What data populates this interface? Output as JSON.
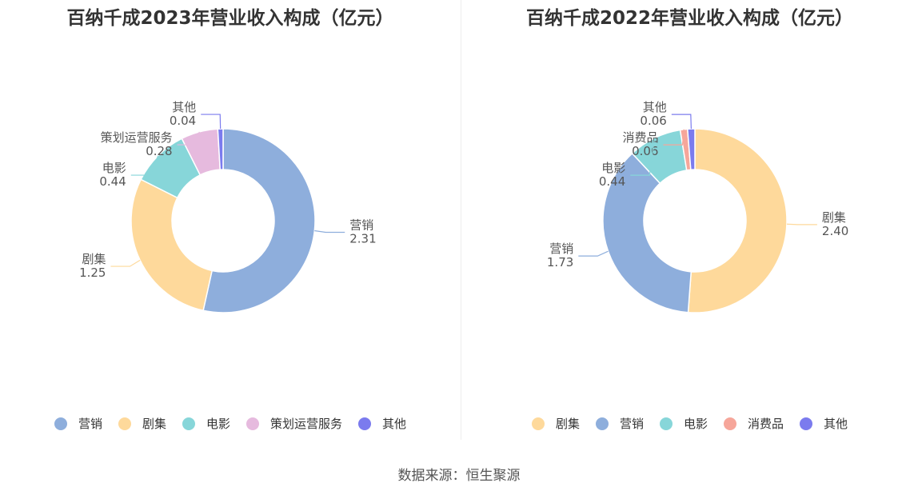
{
  "chart_data": [
    {
      "type": "pie",
      "title": "百纳千成2023年营业收入构成（亿元）",
      "categories": [
        "营销",
        "剧集",
        "电影",
        "策划运营服务",
        "其他"
      ],
      "values": [
        2.31,
        1.25,
        0.44,
        0.28,
        0.04
      ],
      "value_labels": [
        "2.31",
        "1.25",
        "0.44",
        "0.28",
        "0.04"
      ],
      "colors": [
        "#8eaedc",
        "#fed99b",
        "#87d6d9",
        "#e6bade",
        "#7b7bee"
      ],
      "legend_position": "bottom"
    },
    {
      "type": "pie",
      "title": "百纳千成2022年营业收入构成（亿元）",
      "categories": [
        "剧集",
        "营销",
        "电影",
        "消费品",
        "其他"
      ],
      "values": [
        2.4,
        1.73,
        0.44,
        0.06,
        0.06
      ],
      "value_labels": [
        "2.40",
        "1.73",
        "0.44",
        "0.06",
        "0.06"
      ],
      "colors": [
        "#fed99b",
        "#8eaedc",
        "#87d6d9",
        "#f6a69a",
        "#7b7bee"
      ],
      "legend_position": "bottom"
    }
  ],
  "footer": {
    "source": "数据来源：恒生聚源"
  }
}
